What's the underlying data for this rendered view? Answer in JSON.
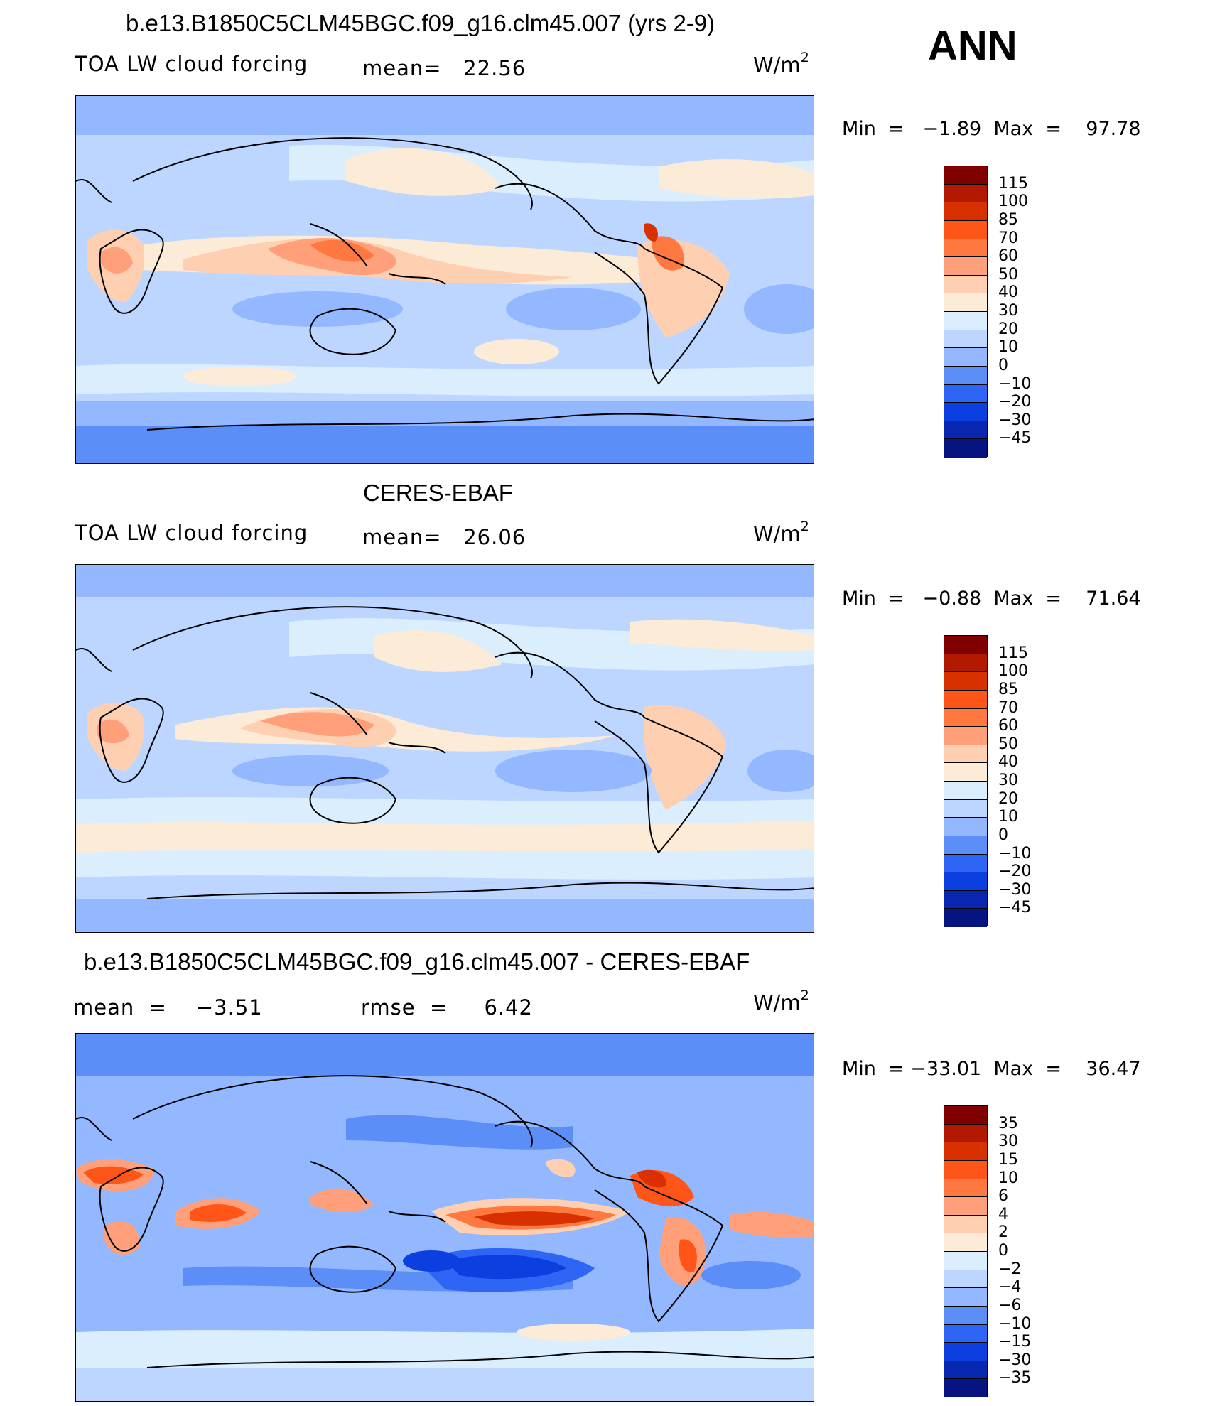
{
  "ann_label": "ANN",
  "panels": [
    {
      "title": "b.e13.B1850C5CLM45BGC.f09_g16.clm45.007 (yrs 2-9)",
      "left_label": "TOA LW cloud forcing",
      "mid_label": "mean=   22.56",
      "unit": "W/m",
      "unit_sup": "2",
      "minmax": "Min  =   −1.89  Max  =    97.78",
      "colorbar": {
        "colors": [
          "#800000",
          "#b31900",
          "#d93000",
          "#ff5519",
          "#ff7840",
          "#ffa07a",
          "#ffcfb1",
          "#fcebd7",
          "#dbeefe",
          "#bcd6ff",
          "#93b8ff",
          "#5b8ef6",
          "#2f65f5",
          "#0c3fe0",
          "#0827b0",
          "#051480"
        ],
        "labels": [
          "115",
          "100",
          "85",
          "70",
          "60",
          "50",
          "40",
          "30",
          "20",
          "10",
          "0",
          "−10",
          "−20",
          "−30",
          "−45"
        ]
      }
    },
    {
      "title": "CERES-EBAF",
      "left_label": "TOA LW cloud forcing",
      "mid_label": "mean=   26.06",
      "unit": "W/m",
      "unit_sup": "2",
      "minmax": "Min  =   −0.88  Max  =    71.64",
      "colorbar": {
        "colors": [
          "#800000",
          "#b31900",
          "#d93000",
          "#ff5519",
          "#ff7840",
          "#ffa07a",
          "#ffcfb1",
          "#fcebd7",
          "#dbeefe",
          "#bcd6ff",
          "#93b8ff",
          "#5b8ef6",
          "#2f65f5",
          "#0c3fe0",
          "#0827b0",
          "#051480"
        ],
        "labels": [
          "115",
          "100",
          "85",
          "70",
          "60",
          "50",
          "40",
          "30",
          "20",
          "10",
          "0",
          "−10",
          "−20",
          "−30",
          "−45"
        ]
      }
    },
    {
      "title": "b.e13.B1850C5CLM45BGC.f09_g16.clm45.007 - CERES-EBAF",
      "left_label": "mean  =    −3.51",
      "mid_label": "rmse  =     6.42",
      "unit": "W/m",
      "unit_sup": "2",
      "minmax": "Min  = −33.01  Max  =    36.47",
      "colorbar": {
        "colors": [
          "#800000",
          "#b31900",
          "#d93000",
          "#ff5519",
          "#ff7840",
          "#ffa07a",
          "#ffcfb1",
          "#fcebd7",
          "#dbeefe",
          "#bcd6ff",
          "#93b8ff",
          "#5b8ef6",
          "#2f65f5",
          "#0c3fe0",
          "#0827b0",
          "#051480"
        ],
        "labels": [
          "35",
          "30",
          "15",
          "10",
          "6",
          "4",
          "2",
          "0",
          "−2",
          "−4",
          "−6",
          "−10",
          "−15",
          "−30",
          "−35"
        ]
      }
    }
  ]
}
